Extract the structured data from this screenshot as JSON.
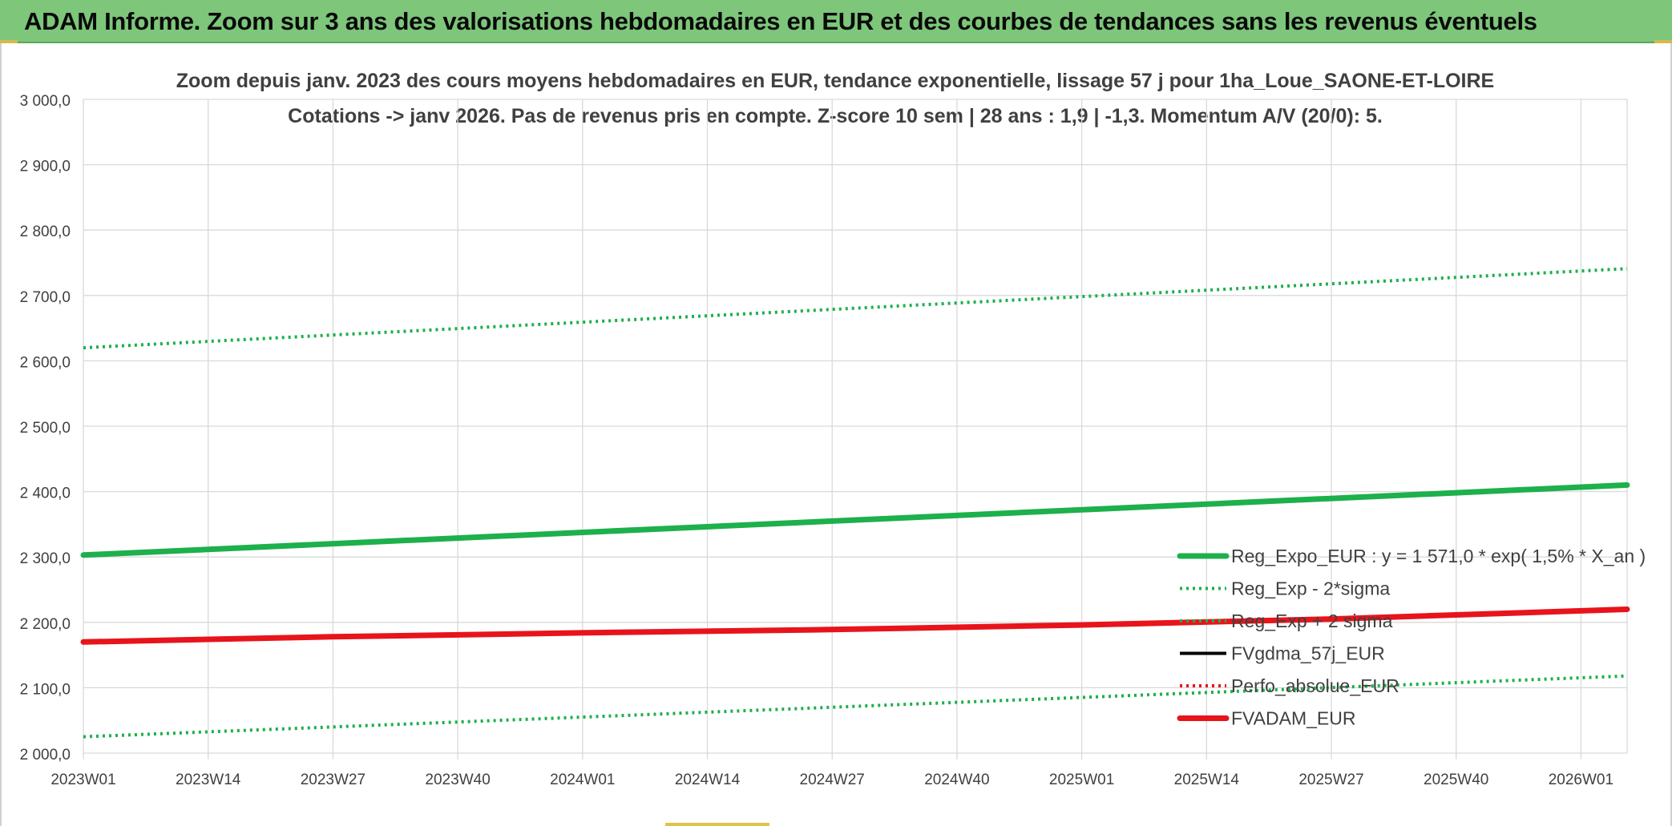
{
  "banner": {
    "title": "ADAM Informe. Zoom sur 3 ans des valorisations hebdomadaires en EUR et des courbes de tendances sans les revenus éventuels"
  },
  "colors": {
    "banner_bg": "#7dc67a",
    "green": "#1db04c",
    "red": "#e8141b",
    "black": "#000000",
    "grid": "#d9d9d9",
    "text": "#404040"
  },
  "chart_data": {
    "type": "line",
    "title_line1": "Zoom depuis janv. 2023 des cours moyens hebdomadaires en EUR, tendance exponentielle, lissage 57 j pour 1ha_Loue_SAONE-ET-LOIRE",
    "title_line2": "Cotations -> janv 2026. Pas de revenus pris en compte. Z-score 10 sem | 28 ans : 1,9 | -1,3. Momentum A/V (20/0): 5.",
    "x_ticks": [
      "2023W01",
      "2023W14",
      "2023W27",
      "2023W40",
      "2024W01",
      "2024W14",
      "2024W27",
      "2024W40",
      "2025W01",
      "2025W14",
      "2025W27",
      "2025W40",
      "2026W01"
    ],
    "y_ticks": [
      "2 000,0",
      "2 100,0",
      "2 200,0",
      "2 300,0",
      "2 400,0",
      "2 500,0",
      "2 600,0",
      "2 700,0",
      "2 800,0",
      "2 900,0",
      "3 000,0"
    ],
    "ylim": [
      2000,
      3000
    ],
    "x_range_weeks": [
      0,
      161
    ],
    "grid": true,
    "legend_position": "right-bottom",
    "series": [
      {
        "name": "Reg_Expo_EUR : y = 1 571,0 * exp( 1,5% *  X_an )",
        "style": "solid-thick",
        "color": "#1db04c",
        "x": [
          0,
          161
        ],
        "values": [
          2303,
          2410
        ]
      },
      {
        "name": "Reg_Exp - 2*sigma",
        "style": "dotted",
        "color": "#1db04c",
        "x": [
          0,
          161
        ],
        "values": [
          2025,
          2118
        ]
      },
      {
        "name": "Reg_Exp + 2 sigma",
        "style": "dotted",
        "color": "#1db04c",
        "x": [
          0,
          161
        ],
        "values": [
          2620,
          2741
        ]
      },
      {
        "name": "FVgdma_57j_EUR",
        "style": "solid",
        "color": "#000000",
        "x": [],
        "values": []
      },
      {
        "name": "Perfo_absolue_EUR",
        "style": "dotted",
        "color": "#e8141b",
        "x": [],
        "values": []
      },
      {
        "name": "FVADAM_EUR",
        "style": "solid-thick",
        "color": "#e8141b",
        "x": [
          0,
          26,
          52,
          78,
          104,
          130,
          161
        ],
        "values": [
          2170,
          2178,
          2184,
          2189,
          2196,
          2205,
          2220
        ]
      }
    ]
  }
}
